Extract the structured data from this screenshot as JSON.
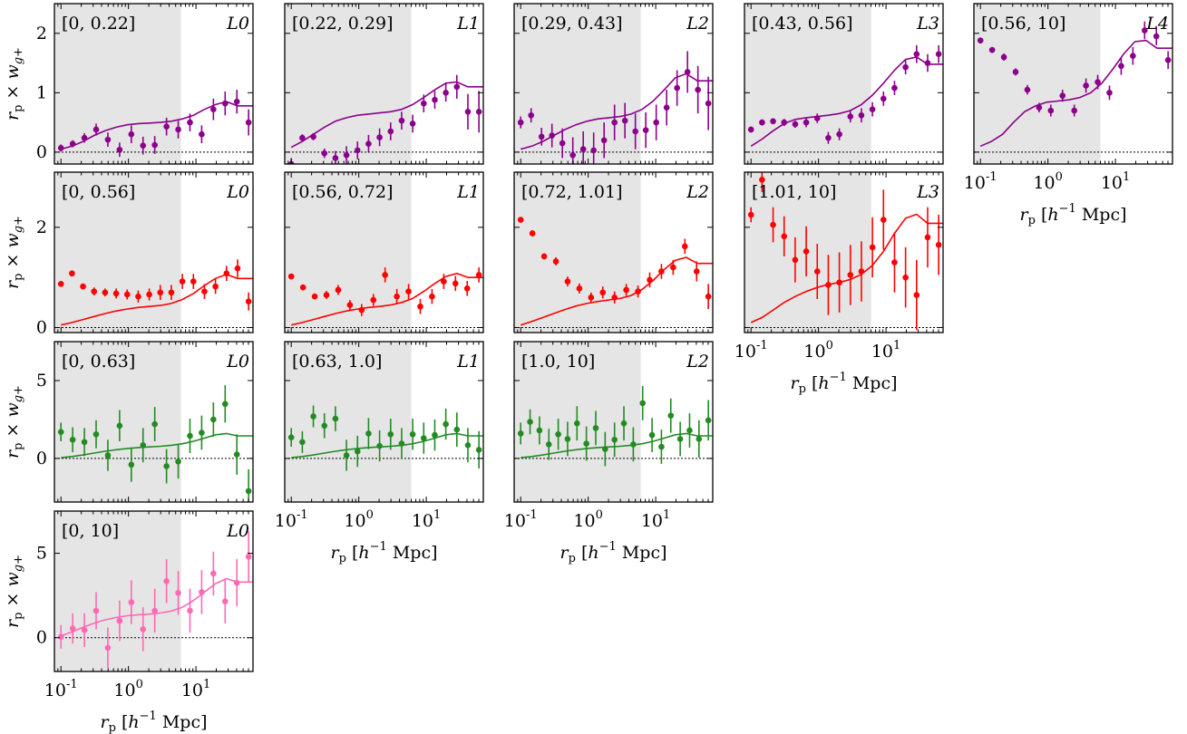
{
  "chart_data": {
    "type": "scatter",
    "x_scale": "log",
    "xlim": [
      0.08,
      70
    ],
    "x_tick_labels": [
      "10^-1",
      "10^0",
      "10^1"
    ],
    "xlabel": "r_p [h^-1 Mpc]",
    "ylabel": "r_p × w_g+",
    "zero_line": "dotted",
    "shaded_region_x": [
      0.08,
      6
    ],
    "rows": [
      {
        "color": "#8b008b",
        "ylim": [
          -0.2,
          2.5
        ],
        "yticks": [
          0,
          1,
          2
        ],
        "panels": [
          {
            "range": "[0, 0.22]",
            "label": "L0",
            "points": [
              0.07,
              0.14,
              0.24,
              0.38,
              0.21,
              0.04,
              0.3,
              0.11,
              0.12,
              0.43,
              0.38,
              0.5,
              0.3,
              0.72,
              0.82,
              0.85,
              0.5
            ],
            "errors": [
              0.06,
              0.06,
              0.08,
              0.1,
              0.12,
              0.12,
              0.15,
              0.15,
              0.15,
              0.15,
              0.15,
              0.15,
              0.15,
              0.18,
              0.2,
              0.2,
              0.22
            ],
            "model": [
              0.05,
              0.1,
              0.18,
              0.28,
              0.36,
              0.42,
              0.46,
              0.48,
              0.49,
              0.5,
              0.52,
              0.56,
              0.62,
              0.72,
              0.8,
              0.85,
              0.78
            ]
          },
          {
            "range": "[0.22, 0.29]",
            "label": "L1",
            "points": [
              -0.2,
              0.24,
              0.26,
              -0.02,
              -0.1,
              -0.05,
              0.03,
              0.14,
              0.25,
              0.35,
              0.53,
              0.48,
              0.82,
              0.88,
              1.0,
              1.1,
              0.68,
              0.68
            ],
            "errors": [
              0.1,
              0.06,
              0.06,
              0.08,
              0.12,
              0.15,
              0.15,
              0.15,
              0.15,
              0.15,
              0.15,
              0.15,
              0.15,
              0.15,
              0.15,
              0.2,
              0.3,
              0.35
            ],
            "model": [
              0.08,
              0.18,
              0.3,
              0.42,
              0.52,
              0.58,
              0.62,
              0.64,
              0.66,
              0.68,
              0.72,
              0.8,
              0.92,
              1.05,
              1.16,
              1.18,
              1.1
            ]
          },
          {
            "range": "[0.29, 0.43]",
            "label": "L2",
            "points": [
              0.5,
              0.62,
              0.26,
              0.28,
              0.15,
              -0.05,
              0.05,
              0.03,
              0.2,
              0.5,
              0.53,
              0.35,
              0.37,
              0.5,
              0.75,
              1.08,
              1.35,
              1.05,
              0.82
            ],
            "errors": [
              0.1,
              0.12,
              0.15,
              0.2,
              0.25,
              0.3,
              0.3,
              0.3,
              0.3,
              0.3,
              0.3,
              0.3,
              0.3,
              0.3,
              0.3,
              0.3,
              0.35,
              0.4,
              0.45
            ],
            "model": [
              0.05,
              0.1,
              0.18,
              0.28,
              0.38,
              0.46,
              0.52,
              0.56,
              0.58,
              0.6,
              0.64,
              0.72,
              0.86,
              1.05,
              1.25,
              1.32,
              1.2
            ]
          },
          {
            "range": "[0.43, 0.56]",
            "label": "L3",
            "points": [
              0.38,
              0.5,
              0.52,
              0.5,
              0.47,
              0.5,
              0.57,
              0.24,
              0.3,
              0.6,
              0.62,
              0.72,
              0.9,
              1.08,
              1.43,
              1.65,
              1.5,
              1.65
            ],
            "errors": [
              0.05,
              0.05,
              0.05,
              0.06,
              0.06,
              0.08,
              0.08,
              0.1,
              0.1,
              0.1,
              0.12,
              0.12,
              0.12,
              0.12,
              0.12,
              0.15,
              0.15,
              0.15
            ],
            "model": [
              0.1,
              0.22,
              0.36,
              0.48,
              0.55,
              0.58,
              0.6,
              0.62,
              0.65,
              0.7,
              0.8,
              0.96,
              1.16,
              1.38,
              1.56,
              1.6,
              1.48
            ]
          },
          {
            "range": "[0.56, 10]",
            "label": "L4",
            "points": [
              1.88,
              1.72,
              1.6,
              1.35,
              1.05,
              0.75,
              0.7,
              0.95,
              0.7,
              1.12,
              1.18,
              1.0,
              1.45,
              1.62,
              2.05,
              1.95,
              1.55
            ],
            "errors": [
              0.05,
              0.05,
              0.06,
              0.06,
              0.08,
              0.08,
              0.1,
              0.1,
              0.1,
              0.12,
              0.12,
              0.12,
              0.15,
              0.15,
              0.15,
              0.15,
              0.15
            ],
            "model": [
              0.1,
              0.18,
              0.3,
              0.5,
              0.68,
              0.78,
              0.84,
              0.86,
              0.88,
              0.92,
              1.0,
              1.16,
              1.4,
              1.66,
              1.86,
              1.88,
              1.75
            ]
          }
        ]
      },
      {
        "color": "#ff0000",
        "ylim": [
          -0.1,
          3.1
        ],
        "yticks": [
          0,
          2
        ],
        "panels": [
          {
            "range": "[0, 0.56]",
            "label": "L0",
            "points": [
              0.87,
              1.08,
              0.82,
              0.72,
              0.7,
              0.68,
              0.66,
              0.62,
              0.66,
              0.7,
              0.7,
              0.92,
              0.92,
              0.72,
              0.82,
              1.08,
              1.18,
              0.52
            ],
            "errors": [
              0.05,
              0.06,
              0.06,
              0.08,
              0.08,
              0.1,
              0.1,
              0.12,
              0.12,
              0.15,
              0.15,
              0.15,
              0.15,
              0.15,
              0.15,
              0.15,
              0.18,
              0.18
            ],
            "model": [
              0.05,
              0.1,
              0.16,
              0.22,
              0.28,
              0.33,
              0.37,
              0.4,
              0.42,
              0.44,
              0.48,
              0.56,
              0.68,
              0.84,
              0.98,
              1.06,
              0.98
            ]
          },
          {
            "range": "[0.56, 0.72]",
            "label": "L1",
            "points": [
              1.02,
              0.8,
              0.62,
              0.65,
              0.75,
              0.45,
              0.35,
              0.55,
              1.05,
              0.62,
              0.72,
              0.42,
              0.62,
              0.92,
              0.88,
              0.78,
              1.05
            ],
            "errors": [
              0.05,
              0.06,
              0.06,
              0.08,
              0.1,
              0.1,
              0.12,
              0.12,
              0.15,
              0.15,
              0.15,
              0.15,
              0.15,
              0.15,
              0.15,
              0.15,
              0.15
            ],
            "model": [
              0.05,
              0.1,
              0.16,
              0.22,
              0.28,
              0.33,
              0.37,
              0.4,
              0.42,
              0.45,
              0.5,
              0.58,
              0.72,
              0.88,
              1.02,
              1.08,
              1.0
            ]
          },
          {
            "range": "[0.72, 1.01]",
            "label": "L2",
            "points": [
              2.15,
              1.88,
              1.42,
              1.32,
              0.92,
              0.78,
              0.6,
              0.7,
              0.6,
              0.75,
              0.72,
              0.95,
              1.12,
              1.2,
              1.62,
              1.12,
              0.62
            ],
            "errors": [
              0.05,
              0.06,
              0.06,
              0.08,
              0.1,
              0.1,
              0.1,
              0.12,
              0.12,
              0.12,
              0.12,
              0.15,
              0.15,
              0.15,
              0.15,
              0.2,
              0.25
            ],
            "model": [
              0.05,
              0.12,
              0.2,
              0.28,
              0.36,
              0.43,
              0.48,
              0.52,
              0.55,
              0.58,
              0.64,
              0.76,
              0.94,
              1.16,
              1.34,
              1.4,
              1.28
            ]
          },
          {
            "range": "[1.01, 10]",
            "label": "L3",
            "points": [
              2.25,
              2.95,
              2.05,
              1.82,
              1.35,
              1.52,
              1.12,
              0.85,
              0.9,
              1.05,
              1.12,
              1.6,
              2.15,
              1.3,
              1.0,
              0.65,
              1.8,
              1.65
            ],
            "errors": [
              0.15,
              0.25,
              0.35,
              0.4,
              0.45,
              0.5,
              0.55,
              0.6,
              0.6,
              0.6,
              0.6,
              0.6,
              0.6,
              0.6,
              0.6,
              0.7,
              0.6,
              0.6
            ],
            "model": [
              0.1,
              0.2,
              0.35,
              0.5,
              0.62,
              0.72,
              0.8,
              0.86,
              0.9,
              0.96,
              1.06,
              1.24,
              1.52,
              1.88,
              2.18,
              2.26,
              2.08
            ]
          }
        ]
      },
      {
        "color": "#228b22",
        "ylim": [
          -2.8,
          7.5
        ],
        "yticks": [
          0,
          5
        ],
        "panels": [
          {
            "range": "[0, 0.63]",
            "label": "L0",
            "points": [
              1.7,
              1.2,
              1.05,
              1.55,
              0.2,
              2.1,
              -0.4,
              0.85,
              2.2,
              -0.5,
              -0.2,
              1.45,
              1.65,
              2.5,
              3.5,
              0.25,
              -2.1
            ],
            "errors": [
              0.6,
              0.8,
              0.9,
              0.9,
              1.0,
              1.0,
              1.1,
              1.1,
              1.1,
              1.1,
              1.1,
              1.1,
              1.1,
              1.1,
              1.2,
              1.3,
              1.4
            ],
            "model": [
              0.05,
              0.12,
              0.22,
              0.34,
              0.46,
              0.56,
              0.64,
              0.7,
              0.74,
              0.78,
              0.84,
              0.94,
              1.1,
              1.3,
              1.52,
              1.6,
              1.45
            ]
          },
          {
            "range": "[0.63, 1.0]",
            "label": "L1",
            "points": [
              1.35,
              1.05,
              2.7,
              2.1,
              2.55,
              0.2,
              0.45,
              1.6,
              0.8,
              1.55,
              0.95,
              1.55,
              1.3,
              1.5,
              2.2,
              1.85,
              0.85,
              0.55
            ],
            "errors": [
              0.6,
              0.7,
              0.7,
              0.8,
              0.8,
              1.0,
              1.0,
              1.0,
              1.0,
              1.0,
              1.0,
              1.0,
              1.0,
              1.0,
              1.0,
              1.1,
              1.1,
              1.2
            ],
            "model": [
              0.05,
              0.12,
              0.22,
              0.34,
              0.46,
              0.56,
              0.64,
              0.7,
              0.74,
              0.78,
              0.84,
              0.94,
              1.1,
              1.3,
              1.52,
              1.6,
              1.45
            ]
          },
          {
            "range": "[1.0, 10]",
            "label": "L2",
            "points": [
              1.6,
              2.35,
              1.8,
              0.9,
              1.55,
              1.25,
              2.25,
              0.95,
              1.95,
              0.6,
              1.2,
              2.25,
              0.9,
              3.55,
              1.5,
              0.75,
              2.75,
              1.25,
              1.8,
              1.25,
              2.45
            ],
            "errors": [
              0.7,
              0.8,
              0.9,
              1.0,
              1.0,
              1.1,
              1.1,
              1.1,
              1.1,
              1.1,
              1.1,
              1.1,
              1.1,
              1.1,
              1.1,
              1.1,
              1.1,
              1.1,
              1.1,
              1.2,
              1.3
            ],
            "model": [
              0.05,
              0.12,
              0.22,
              0.34,
              0.46,
              0.56,
              0.64,
              0.7,
              0.74,
              0.78,
              0.84,
              0.94,
              1.1,
              1.3,
              1.52,
              1.6,
              1.45
            ]
          }
        ]
      },
      {
        "color": "#ff69b4",
        "ylim": [
          -2.0,
          7.5
        ],
        "yticks": [
          0,
          5
        ],
        "panels": [
          {
            "range": "[0, 10]",
            "label": "L0",
            "points": [
              0.05,
              0.55,
              0.45,
              1.6,
              -0.6,
              1.0,
              2.1,
              0.5,
              1.6,
              3.35,
              2.65,
              1.6,
              2.7,
              3.8,
              2.15,
              3.25,
              4.8
            ],
            "errors": [
              0.7,
              0.9,
              1.0,
              1.1,
              1.2,
              1.2,
              1.3,
              1.3,
              1.3,
              1.3,
              1.3,
              1.3,
              1.3,
              1.3,
              1.3,
              1.4,
              1.5
            ],
            "model": [
              0.1,
              0.35,
              0.62,
              0.86,
              1.06,
              1.2,
              1.3,
              1.36,
              1.4,
              1.46,
              1.58,
              1.8,
              2.2,
              2.7,
              3.2,
              3.5,
              3.3
            ]
          }
        ]
      }
    ]
  }
}
